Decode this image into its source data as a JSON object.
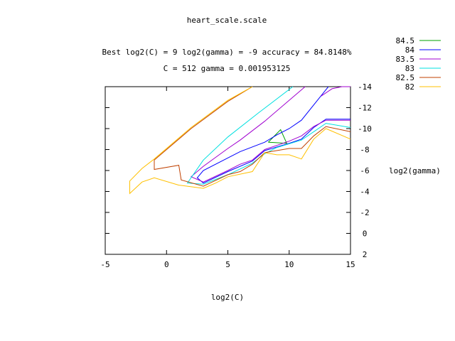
{
  "chart_data": {
    "type": "line",
    "subtype": "contour",
    "title": "heart_scale.scale",
    "subtitle_line1": "Best log2(C) = 9  log2(gamma) = -9  accuracy = 84.8148%",
    "subtitle_line2": "C = 512  gamma = 0.001953125",
    "xlabel": "log2(C)",
    "ylabel": "log2(gamma)",
    "xlim": [
      -5,
      15
    ],
    "ylim": [
      -14,
      2
    ],
    "y_axis_reversed": true,
    "y_axis_side": "right",
    "x_ticks": [
      -5,
      0,
      5,
      10,
      15
    ],
    "x_tick_labels": [
      "-5",
      "0",
      "5",
      "10",
      "15"
    ],
    "y_ticks": [
      -14,
      -12,
      -10,
      -8,
      -6,
      -4,
      -2,
      0,
      2
    ],
    "y_tick_labels": [
      "-14",
      "-12",
      "-10",
      "-8",
      "-6",
      "-4",
      "-2",
      "0",
      "2"
    ],
    "legend_position": "top-right",
    "grid": false,
    "series": [
      {
        "name": "84.5",
        "color": "#00a000",
        "polylines": [
          [
            [
              8.3,
              -8.7
            ],
            [
              9.3,
              -9.9
            ],
            [
              9.8,
              -8.6
            ],
            [
              8.3,
              -8.7
            ]
          ]
        ]
      },
      {
        "name": "84",
        "color": "#0000ff",
        "polylines": [
          [
            [
              13.2,
              -14.2
            ],
            [
              11.0,
              -10.8
            ],
            [
              10.0,
              -10.0
            ],
            [
              9.0,
              -9.4
            ],
            [
              8.0,
              -8.7
            ],
            [
              6.0,
              -7.8
            ],
            [
              5.0,
              -7.2
            ],
            [
              3.0,
              -6.0
            ],
            [
              2.5,
              -5.3
            ],
            [
              3.0,
              -4.8
            ],
            [
              5.0,
              -5.9
            ],
            [
              7.0,
              -6.9
            ],
            [
              8.0,
              -7.9
            ],
            [
              10.0,
              -8.6
            ],
            [
              11.0,
              -9.0
            ],
            [
              12.0,
              -10.1
            ],
            [
              13.0,
              -10.9
            ],
            [
              15.0,
              -10.9
            ]
          ]
        ]
      },
      {
        "name": "83.5",
        "color": "#a000d0",
        "polylines": [
          [
            [
              12.6,
              -13.1
            ],
            [
              13.5,
              -13.8
            ],
            [
              14.3,
              -15.0
            ],
            [
              15.0,
              -15.0
            ]
          ],
          [
            [
              11.3,
              -15.0
            ],
            [
              8.0,
              -10.7
            ],
            [
              6.0,
              -8.9
            ],
            [
              5.0,
              -8.1
            ],
            [
              3.0,
              -6.4
            ],
            [
              2.0,
              -5.4
            ],
            [
              3.0,
              -4.9
            ],
            [
              5.0,
              -6.0
            ],
            [
              6.0,
              -6.6
            ],
            [
              7.0,
              -7.0
            ],
            [
              8.0,
              -8.0
            ],
            [
              10.0,
              -8.8
            ],
            [
              11.0,
              -9.3
            ],
            [
              12.0,
              -10.2
            ],
            [
              13.0,
              -10.8
            ],
            [
              15.0,
              -10.8
            ]
          ]
        ]
      },
      {
        "name": "83",
        "color": "#00e0e0",
        "polylines": [
          [
            [
              10.3,
              -15.0
            ],
            [
              7.5,
              -11.5
            ],
            [
              5.0,
              -9.2
            ],
            [
              3.0,
              -7.0
            ],
            [
              1.7,
              -4.8
            ],
            [
              3.0,
              -4.7
            ],
            [
              5.0,
              -5.6
            ],
            [
              7.0,
              -6.7
            ],
            [
              8.0,
              -7.6
            ],
            [
              9.0,
              -8.2
            ],
            [
              11.0,
              -8.9
            ],
            [
              12.0,
              -9.7
            ],
            [
              13.0,
              -10.5
            ],
            [
              15.0,
              -10.1
            ]
          ]
        ]
      },
      {
        "name": "82.5",
        "color": "#c04000",
        "polylines": [
          [
            [
              -1.0,
              -7.0
            ],
            [
              -1.0,
              -6.1
            ],
            [
              1.0,
              -6.5
            ],
            [
              1.2,
              -5.1
            ],
            [
              3.0,
              -4.5
            ],
            [
              5.0,
              -5.6
            ],
            [
              6.0,
              -5.9
            ],
            [
              7.0,
              -6.6
            ],
            [
              8.0,
              -7.7
            ],
            [
              10.0,
              -8.1
            ],
            [
              11.0,
              -8.1
            ],
            [
              12.0,
              -9.3
            ],
            [
              13.0,
              -10.2
            ],
            [
              15.0,
              -9.7
            ]
          ],
          [
            [
              -1.0,
              -7.0
            ],
            [
              2.0,
              -10.0
            ],
            [
              5.0,
              -12.6
            ],
            [
              7.0,
              -15.2
            ]
          ]
        ]
      },
      {
        "name": "82",
        "color": "#ffc000",
        "polylines": [
          [
            [
              7.0,
              -15.2
            ],
            [
              5.0,
              -12.7
            ],
            [
              2.0,
              -10.1
            ],
            [
              -1.0,
              -7.1
            ],
            [
              -2.0,
              -6.2
            ],
            [
              -3.0,
              -5.0
            ],
            [
              -3.0,
              -3.8
            ],
            [
              -2.0,
              -4.9
            ],
            [
              -1.0,
              -5.3
            ],
            [
              1.0,
              -4.6
            ],
            [
              3.0,
              -4.3
            ],
            [
              4.0,
              -4.8
            ],
            [
              5.0,
              -5.4
            ],
            [
              7.0,
              -5.9
            ],
            [
              8.0,
              -7.7
            ],
            [
              9.0,
              -7.5
            ],
            [
              10.0,
              -7.5
            ],
            [
              11.0,
              -7.1
            ],
            [
              12.0,
              -9.0
            ],
            [
              13.0,
              -10.0
            ],
            [
              15.0,
              -9.0
            ]
          ]
        ]
      }
    ]
  }
}
